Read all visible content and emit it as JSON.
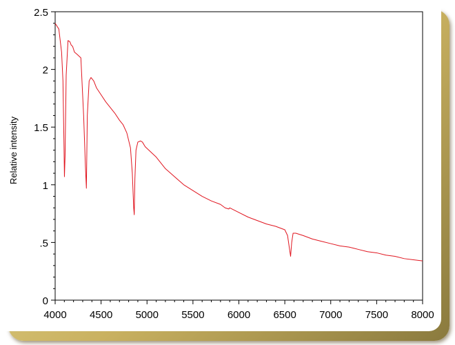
{
  "chart_data": {
    "type": "line",
    "title": "",
    "xlabel": "",
    "ylabel": "Relative intensity",
    "xlim": [
      4000,
      8000
    ],
    "ylim": [
      0,
      2.5
    ],
    "grid": false,
    "x_ticks": [
      4000,
      4500,
      5000,
      5500,
      6000,
      6500,
      7000,
      7500,
      8000
    ],
    "x_tick_labels": [
      "4000",
      "4500",
      "5000",
      "5500",
      "6000",
      "6500",
      "7000",
      "7500",
      "8000"
    ],
    "y_ticks": [
      0,
      0.5,
      1,
      1.5,
      2,
      2.5
    ],
    "y_tick_labels": [
      "0",
      ".5",
      "1",
      "1.5",
      "2",
      "2.5"
    ],
    "series": [
      {
        "color": "#e0141e",
        "x": [
          4000,
          4040,
          4070,
          4085,
          4095,
          4101,
          4108,
          4120,
          4140,
          4160,
          4175,
          4190,
          4210,
          4240,
          4280,
          4310,
          4330,
          4340,
          4350,
          4370,
          4390,
          4420,
          4450,
          4500,
          4550,
          4600,
          4650,
          4700,
          4740,
          4780,
          4820,
          4840,
          4855,
          4861,
          4868,
          4880,
          4900,
          4930,
          4950,
          4980,
          5020,
          5060,
          5100,
          5150,
          5200,
          5300,
          5400,
          5500,
          5600,
          5700,
          5800,
          5850,
          5890,
          5900,
          6000,
          6100,
          6200,
          6300,
          6400,
          6500,
          6530,
          6550,
          6563,
          6575,
          6590,
          6620,
          6700,
          6800,
          6900,
          7000,
          7100,
          7200,
          7250,
          7300,
          7400,
          7500,
          7600,
          7700,
          7800,
          7900,
          8000
        ],
        "y": [
          2.4,
          2.35,
          2.15,
          1.9,
          1.4,
          1.07,
          1.25,
          1.95,
          2.25,
          2.24,
          2.21,
          2.2,
          2.15,
          2.13,
          2.1,
          1.6,
          1.15,
          0.97,
          1.6,
          1.9,
          1.93,
          1.9,
          1.84,
          1.78,
          1.72,
          1.67,
          1.62,
          1.56,
          1.52,
          1.45,
          1.32,
          1.1,
          0.8,
          0.74,
          1.05,
          1.3,
          1.37,
          1.38,
          1.37,
          1.33,
          1.3,
          1.27,
          1.24,
          1.19,
          1.14,
          1.07,
          1.0,
          0.95,
          0.9,
          0.86,
          0.83,
          0.8,
          0.79,
          0.8,
          0.76,
          0.72,
          0.69,
          0.66,
          0.64,
          0.61,
          0.56,
          0.45,
          0.38,
          0.5,
          0.58,
          0.58,
          0.56,
          0.53,
          0.51,
          0.49,
          0.47,
          0.46,
          0.45,
          0.44,
          0.42,
          0.41,
          0.39,
          0.38,
          0.36,
          0.35,
          0.34
        ]
      }
    ]
  }
}
